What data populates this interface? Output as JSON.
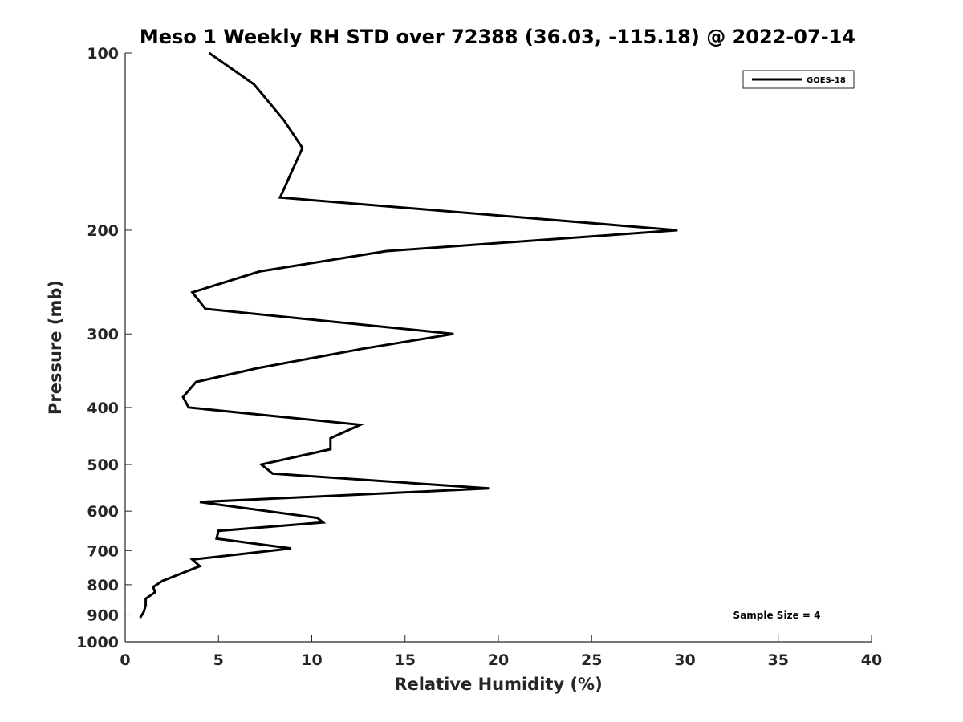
{
  "chart_data": {
    "type": "line",
    "title": "Meso 1 Weekly RH STD over 72388 (36.03, -115.18) @ 2022-07-14",
    "xlabel": "Relative Humidity (%)",
    "ylabel": "Pressure (mb)",
    "xlim": [
      0,
      40
    ],
    "ylim": [
      100,
      1000
    ],
    "yscale": "log",
    "y_reversed": true,
    "xticks": [
      "0",
      "5",
      "10",
      "15",
      "20",
      "25",
      "30",
      "35",
      "40"
    ],
    "yticks": [
      "100",
      "200",
      "300",
      "400",
      "500",
      "600",
      "700",
      "800",
      "900",
      "1000"
    ],
    "legend": {
      "position": "top-right",
      "entries": [
        "GOES-18"
      ]
    },
    "annotation": "Sample Size = 4",
    "series": [
      {
        "name": "GOES-18",
        "color": "#000000",
        "x": [
          4.5,
          6.9,
          8.5,
          9.5,
          8.3,
          29.6,
          14.0,
          7.2,
          3.6,
          4.3,
          17.6,
          12.7,
          7.1,
          3.8,
          3.1,
          3.4,
          12.6,
          11.0,
          11.0,
          7.3,
          7.9,
          19.5,
          4.0,
          10.3,
          10.6,
          5.0,
          4.9,
          8.9,
          3.6,
          4.0,
          2.0,
          1.5,
          1.6,
          1.1,
          1.1,
          1.0,
          0.8
        ],
        "y": [
          100,
          113,
          130,
          145,
          176,
          200,
          217,
          235,
          255,
          272,
          300,
          318,
          343,
          362,
          384,
          400,
          428,
          451,
          471,
          500,
          518,
          549,
          579,
          616,
          627,
          648,
          668,
          694,
          725,
          744,
          788,
          807,
          824,
          845,
          867,
          889,
          910
        ]
      }
    ]
  }
}
